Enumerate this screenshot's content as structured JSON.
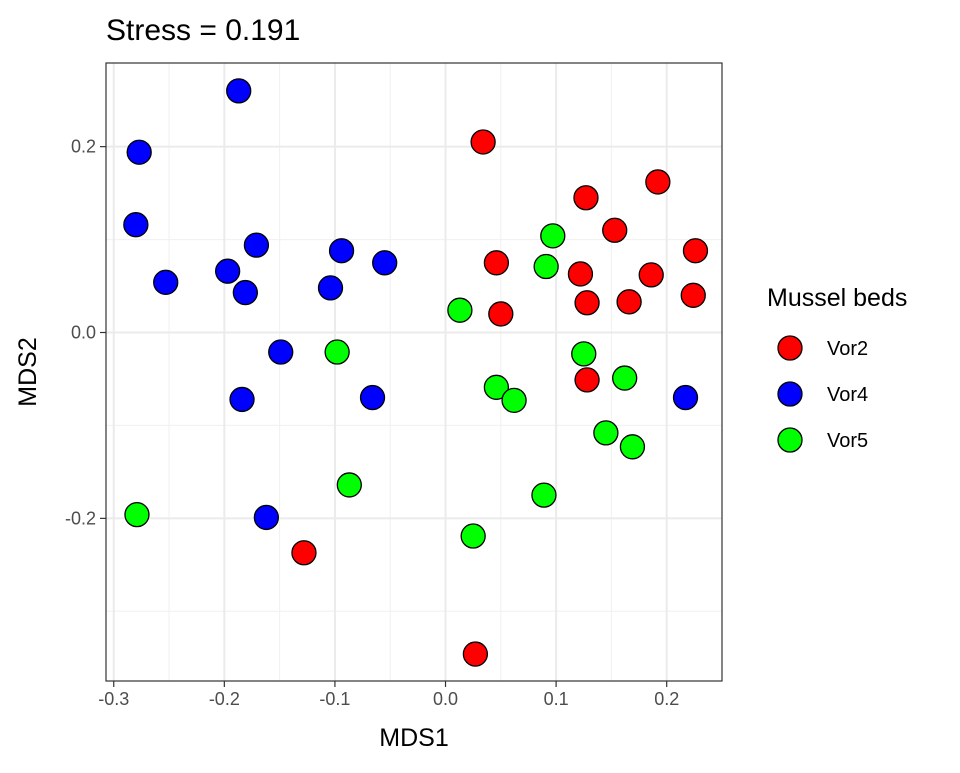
{
  "chart_data": {
    "type": "scatter",
    "title": "Stress =  0.191",
    "xlabel": "MDS1",
    "ylabel": "MDS2",
    "xlim": [
      -0.307,
      0.25
    ],
    "ylim": [
      -0.375,
      0.29
    ],
    "x_ticks": [
      -0.3,
      -0.2,
      -0.1,
      0.0,
      0.1,
      0.2
    ],
    "x_tick_labels": [
      "-0.3",
      "-0.2",
      "-0.1",
      "0.0",
      "0.1",
      "0.2"
    ],
    "y_ticks": [
      -0.2,
      0.0,
      0.2
    ],
    "y_tick_labels": [
      "-0.2",
      "0.0",
      "0.2"
    ],
    "grid": true,
    "legend": {
      "title": "Mussel beds",
      "position": "right"
    },
    "series": [
      {
        "name": "Vor2",
        "color": "#ff0000",
        "points": [
          [
            0.034,
            0.205
          ],
          [
            0.127,
            0.145
          ],
          [
            0.192,
            0.162
          ],
          [
            0.153,
            0.11
          ],
          [
            0.226,
            0.088
          ],
          [
            0.046,
            0.075
          ],
          [
            0.122,
            0.063
          ],
          [
            0.186,
            0.062
          ],
          [
            0.224,
            0.04
          ],
          [
            0.128,
            0.032
          ],
          [
            0.166,
            0.033
          ],
          [
            0.05,
            0.02
          ],
          [
            0.128,
            -0.051
          ],
          [
            -0.128,
            -0.237
          ],
          [
            0.027,
            -0.346
          ]
        ]
      },
      {
        "name": "Vor4",
        "color": "#0000ff",
        "points": [
          [
            -0.187,
            0.26
          ],
          [
            -0.277,
            0.194
          ],
          [
            -0.28,
            0.116
          ],
          [
            -0.171,
            0.094
          ],
          [
            -0.094,
            0.088
          ],
          [
            -0.055,
            0.075
          ],
          [
            -0.197,
            0.066
          ],
          [
            -0.253,
            0.054
          ],
          [
            -0.181,
            0.043
          ],
          [
            -0.104,
            0.048
          ],
          [
            -0.149,
            -0.021
          ],
          [
            -0.184,
            -0.072
          ],
          [
            -0.066,
            -0.07
          ],
          [
            0.217,
            -0.07
          ],
          [
            -0.162,
            -0.199
          ]
        ]
      },
      {
        "name": "Vor5",
        "color": "#00ff00",
        "points": [
          [
            0.097,
            0.104
          ],
          [
            0.091,
            0.071
          ],
          [
            0.013,
            0.024
          ],
          [
            -0.098,
            -0.021
          ],
          [
            0.125,
            -0.023
          ],
          [
            0.162,
            -0.049
          ],
          [
            0.046,
            -0.059
          ],
          [
            0.062,
            -0.073
          ],
          [
            0.145,
            -0.108
          ],
          [
            0.169,
            -0.123
          ],
          [
            -0.087,
            -0.164
          ],
          [
            0.089,
            -0.175
          ],
          [
            -0.279,
            -0.196
          ],
          [
            0.025,
            -0.219
          ]
        ]
      }
    ]
  }
}
